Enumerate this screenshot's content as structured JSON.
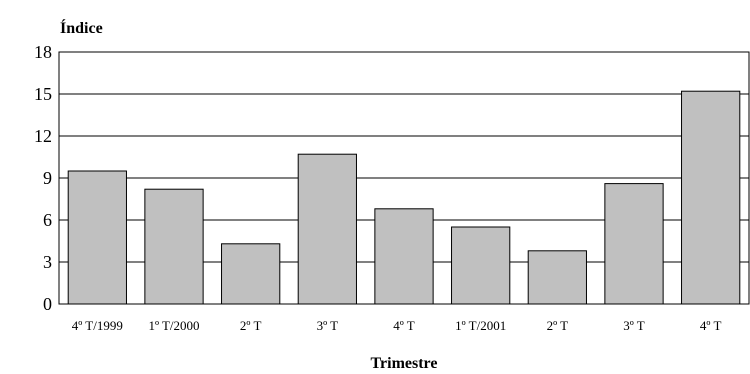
{
  "chart_data": {
    "type": "bar",
    "ylabel": "Índice",
    "xlabel": "Trimestre",
    "ylim": [
      0,
      18
    ],
    "yticks": [
      0,
      3,
      6,
      9,
      12,
      15,
      18
    ],
    "grid": true,
    "bar_color": "#c0c0c0",
    "categories": [
      "4º T/1999",
      "1º T/2000",
      "2º T",
      "3º T",
      "4º T",
      "1º T/2001",
      "2º T",
      "3º T",
      "4º T"
    ],
    "values": [
      9.5,
      8.2,
      4.3,
      10.7,
      6.8,
      5.5,
      3.8,
      8.6,
      15.2
    ]
  }
}
